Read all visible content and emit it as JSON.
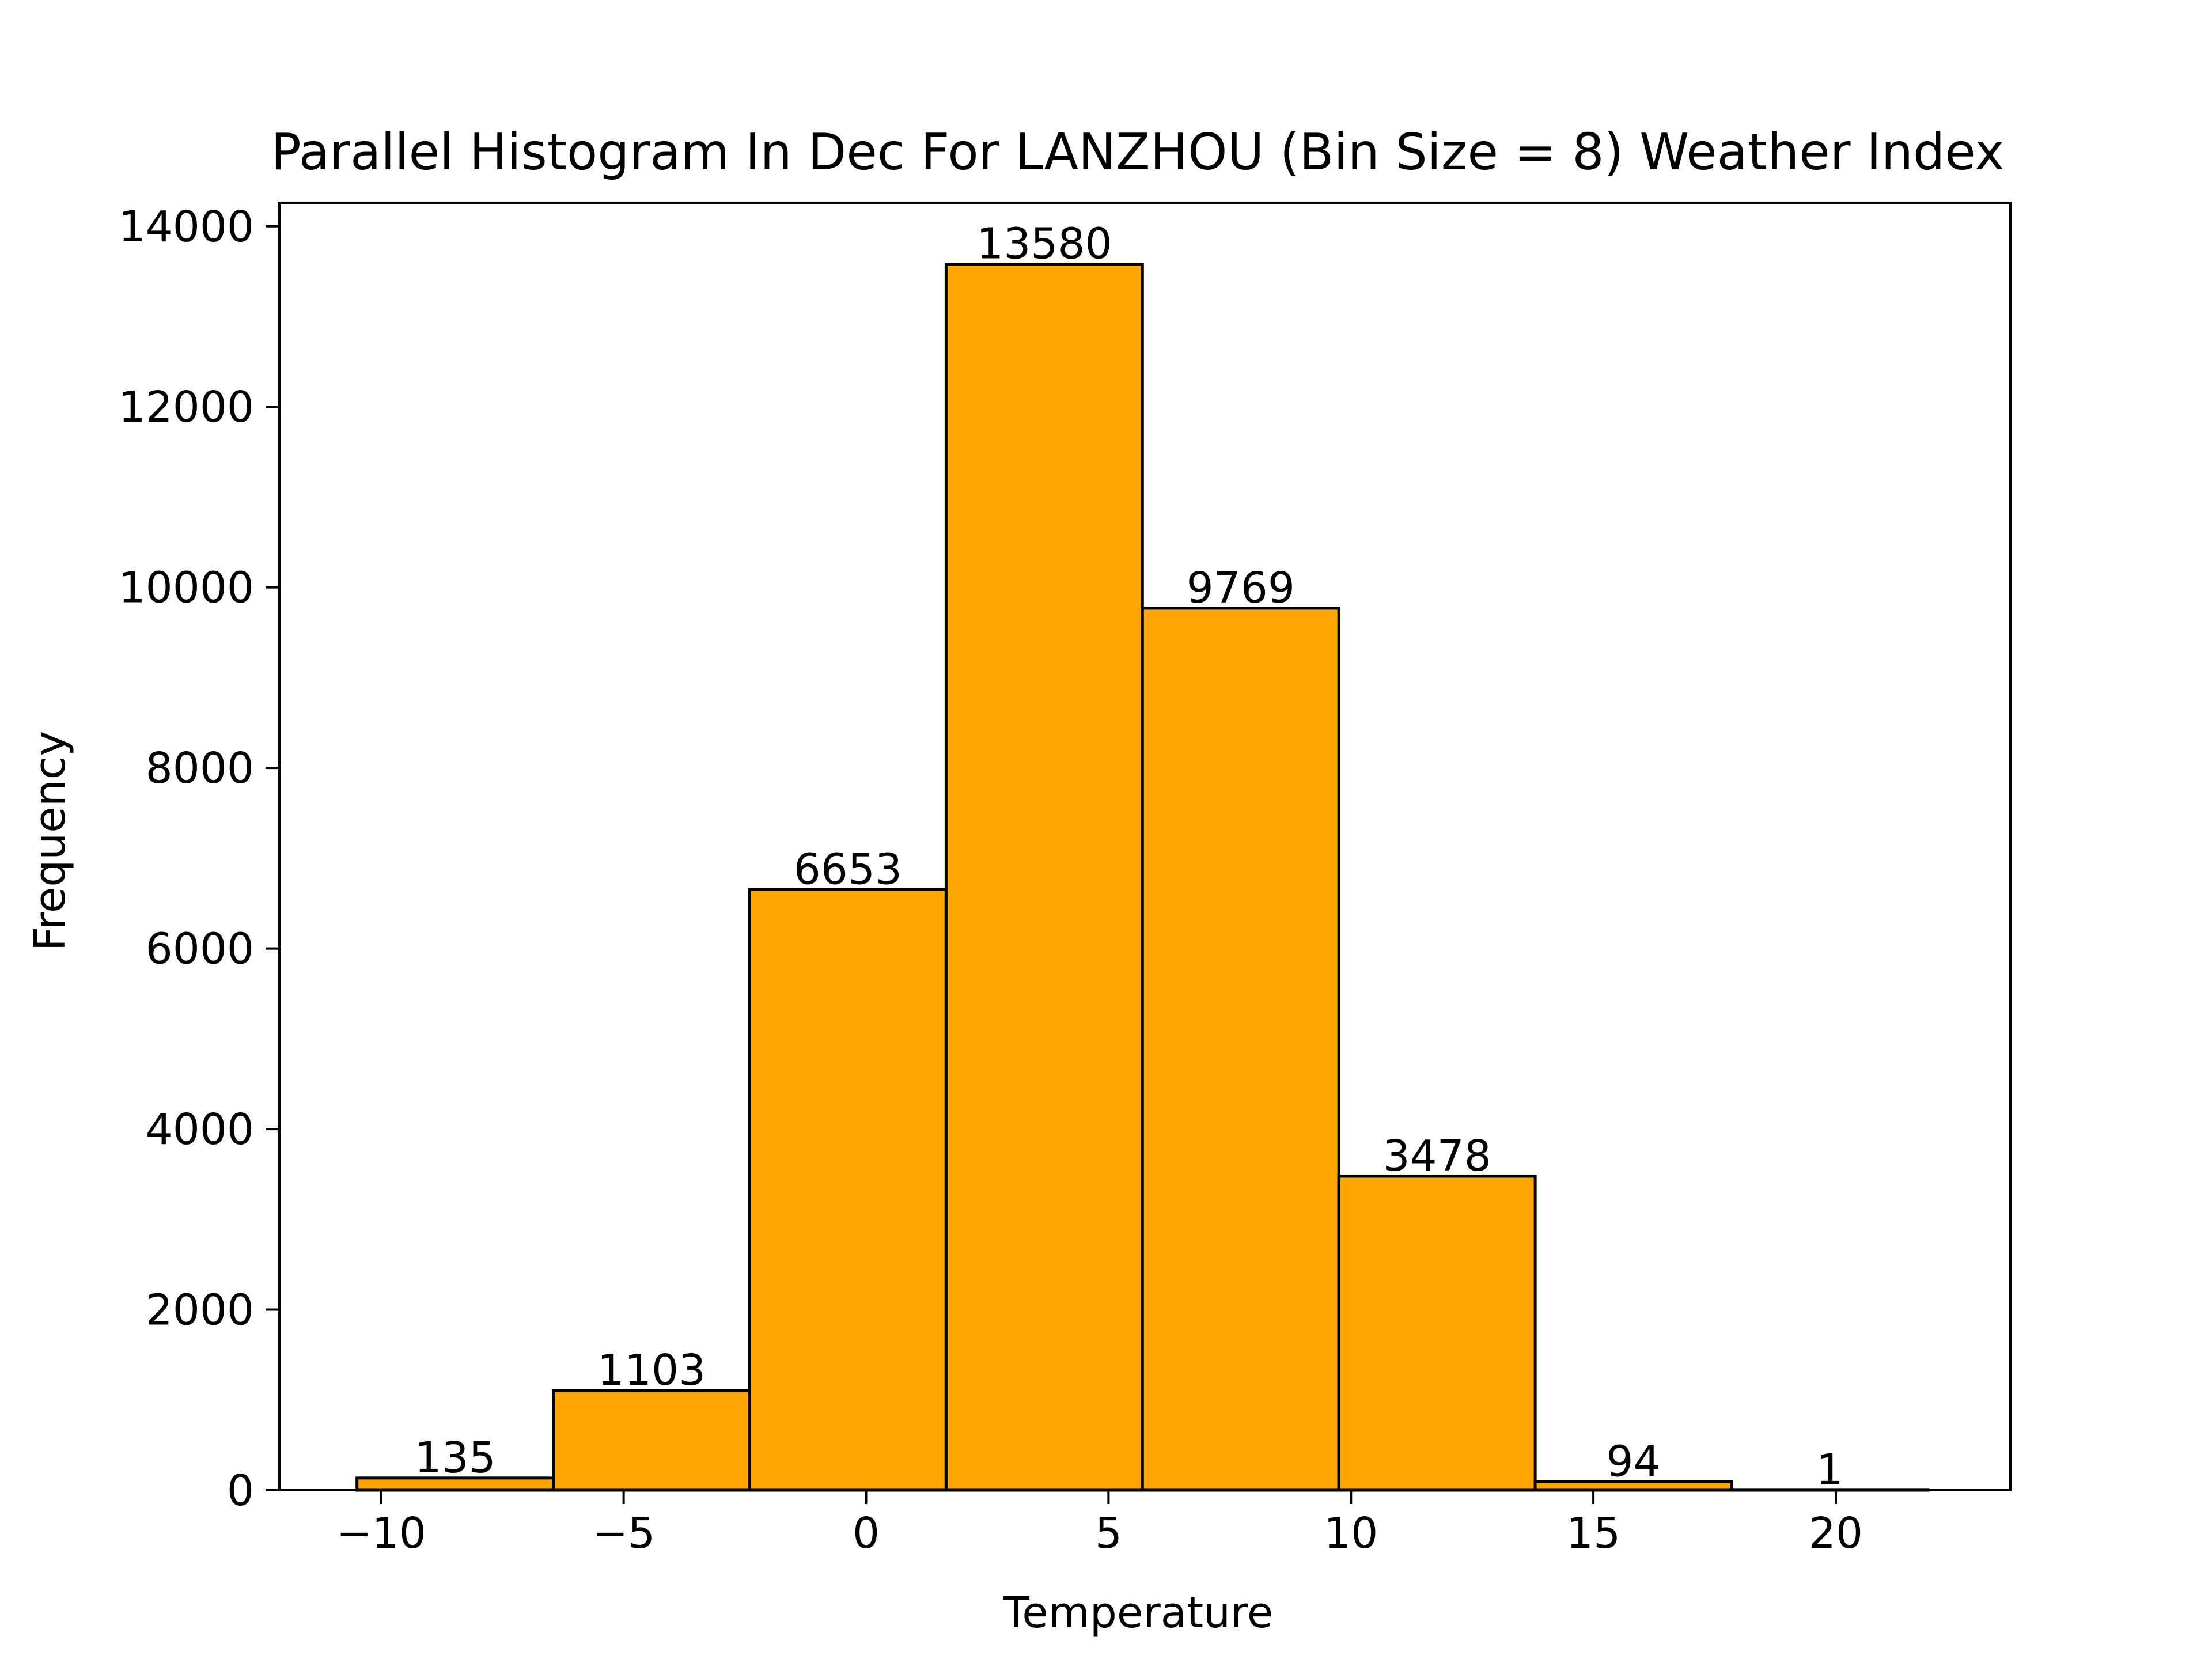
{
  "chart_data": {
    "type": "bar",
    "title": "Parallel Histogram In Dec For LANZHOU (Bin Size = 8) Weather Index",
    "xlabel": "Temperature",
    "ylabel": "Frequency",
    "bins": [
      {
        "x_start": -10.5,
        "x_end": -6.45,
        "value": 135,
        "label": "135"
      },
      {
        "x_start": -6.45,
        "x_end": -2.4,
        "value": 1103,
        "label": "1103"
      },
      {
        "x_start": -2.4,
        "x_end": 1.65,
        "value": 6653,
        "label": "6653"
      },
      {
        "x_start": 1.65,
        "x_end": 5.7,
        "value": 13580,
        "label": "13580"
      },
      {
        "x_start": 5.7,
        "x_end": 9.75,
        "value": 9769,
        "label": "9769"
      },
      {
        "x_start": 9.75,
        "x_end": 13.8,
        "value": 3478,
        "label": "3478"
      },
      {
        "x_start": 13.8,
        "x_end": 17.85,
        "value": 94,
        "label": "94"
      },
      {
        "x_start": 17.85,
        "x_end": 21.9,
        "value": 1,
        "label": "1"
      }
    ],
    "xlim": [
      -12.1,
      23.6
    ],
    "ylim": [
      0,
      14260
    ],
    "x_ticks": [
      {
        "value": -10,
        "label": "−10"
      },
      {
        "value": -5,
        "label": "−5"
      },
      {
        "value": 0,
        "label": "0"
      },
      {
        "value": 5,
        "label": "5"
      },
      {
        "value": 10,
        "label": "10"
      },
      {
        "value": 15,
        "label": "15"
      },
      {
        "value": 20,
        "label": "20"
      }
    ],
    "y_ticks": [
      {
        "value": 0,
        "label": "0"
      },
      {
        "value": 2000,
        "label": "2000"
      },
      {
        "value": 4000,
        "label": "4000"
      },
      {
        "value": 6000,
        "label": "6000"
      },
      {
        "value": 8000,
        "label": "8000"
      },
      {
        "value": 10000,
        "label": "10000"
      },
      {
        "value": 12000,
        "label": "12000"
      },
      {
        "value": 14000,
        "label": "14000"
      }
    ],
    "grid": false,
    "legend": "none",
    "colors": {
      "bar_fill": "#FFA500",
      "bar_edge": "#000000",
      "axes": "#000000",
      "text": "#000000"
    }
  }
}
